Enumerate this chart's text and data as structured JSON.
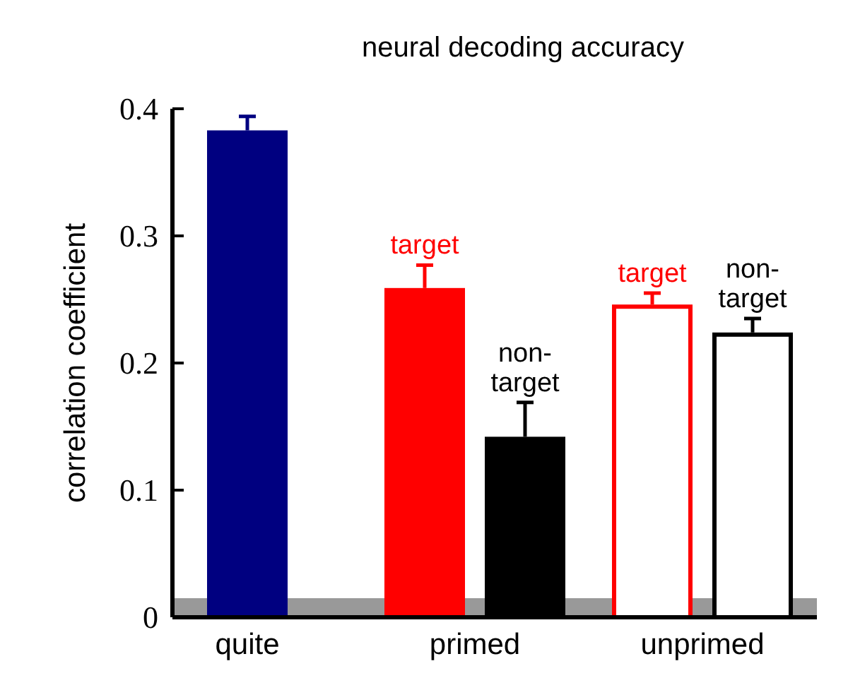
{
  "chart_data": {
    "type": "bar",
    "title": "neural decoding accuracy",
    "ylabel": "correlation coefficient",
    "categories": [
      "quite",
      "primed",
      "unprimed"
    ],
    "series": [
      {
        "color": "#000080",
        "values": [
          0.383,
          null,
          null
        ],
        "errors": [
          [
            0.383,
            0.394
          ],
          null,
          null
        ]
      },
      {
        "name": "target",
        "color": "#ff0000",
        "values": [
          null,
          0.259,
          0.246
        ],
        "errors": [
          null,
          [
            0.259,
            0.277
          ],
          [
            0.246,
            0.255
          ]
        ],
        "colors": [
          null,
          "#ff0000",
          "#ffffff"
        ]
      },
      {
        "name": "non-target",
        "color": "#000000",
        "values": [
          null,
          0.142,
          0.224
        ],
        "errors": [
          null,
          [
            0.142,
            0.169
          ],
          [
            0.224,
            0.235
          ]
        ],
        "colors": [
          null,
          "#000000",
          "#ffffff"
        ]
      }
    ],
    "ylim": [
      0,
      0.4
    ],
    "yticks": [
      0,
      0.1,
      0.2,
      0.3,
      0.4
    ],
    "bands": [
      {
        "axis": "y",
        "from": 0,
        "to": 0.015,
        "color": "#999999"
      }
    ],
    "grid": false
  }
}
